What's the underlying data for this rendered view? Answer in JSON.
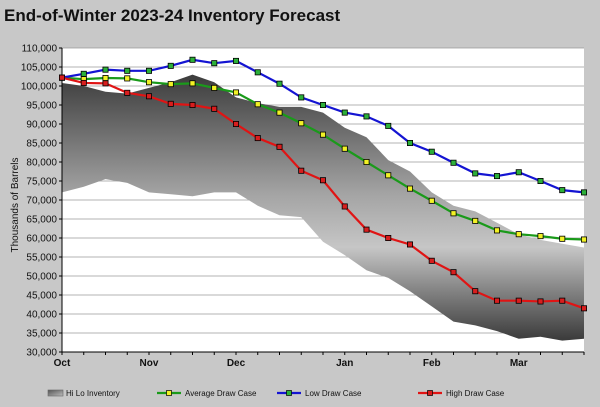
{
  "title": "End-of-Winter 2023-24 Inventory Forecast",
  "chart_data": {
    "type": "line",
    "title": "End-of-Winter 2023-24 Inventory Forecast",
    "xlabel": "",
    "ylabel": "Thousands of Barrels",
    "ylim": [
      30000,
      110000
    ],
    "ytick_step": 5000,
    "ytick_labels": [
      "30,000",
      "35,000",
      "40,000",
      "45,000",
      "50,000",
      "55,000",
      "60,000",
      "65,000",
      "70,000",
      "75,000",
      "80,000",
      "85,000",
      "90,000",
      "95,000",
      "100,000",
      "105,000",
      "110,000"
    ],
    "x_tick_labels": [
      "Oct",
      "Nov",
      "Dec",
      "Jan",
      "Feb",
      "Mar"
    ],
    "x_tick_index": [
      0,
      4,
      8,
      13,
      17,
      21
    ],
    "x_count": 25,
    "hi_lo": {
      "name": "Hi Lo Inventory",
      "high": [
        100800,
        100000,
        98500,
        98000,
        99500,
        101000,
        103000,
        101000,
        97000,
        95500,
        94500,
        94500,
        93000,
        89000,
        86500,
        80500,
        77500,
        72000,
        68500,
        67000,
        64000,
        61000,
        59500,
        58500,
        57500
      ],
      "low": [
        72000,
        73500,
        75500,
        74500,
        72000,
        71500,
        71000,
        72000,
        72000,
        68500,
        66000,
        65500,
        59000,
        55500,
        51500,
        49500,
        46000,
        42000,
        38000,
        37000,
        35500,
        33500,
        34000,
        33000,
        33500
      ]
    },
    "series": [
      {
        "name": "Average Draw Case",
        "color": "#1a9a1a",
        "marker": "#f2f226",
        "values": [
          102200,
          101800,
          102100,
          102000,
          101000,
          100500,
          100700,
          99500,
          98300,
          95200,
          93000,
          90200,
          87200,
          83500,
          80000,
          76500,
          73000,
          69800,
          66500,
          64500,
          62000,
          61000,
          60500,
          59800,
          59600
        ]
      },
      {
        "name": "Low Draw Case",
        "color": "#1414d2",
        "marker": "#2cb03a",
        "values": [
          102200,
          103200,
          104300,
          104000,
          104000,
          105300,
          106900,
          106000,
          106600,
          103600,
          100600,
          97000,
          95000,
          93000,
          92000,
          89500,
          85000,
          82700,
          79800,
          77000,
          76300,
          77300,
          75000,
          72600,
          72000
        ]
      },
      {
        "name": "High Draw Case",
        "color": "#e01414",
        "marker": "#d81e1e",
        "values": [
          102200,
          100800,
          100700,
          98200,
          97300,
          95300,
          95000,
          94000,
          90000,
          86300,
          84000,
          77700,
          75200,
          68300,
          62200,
          60000,
          58300,
          54000,
          51000,
          46000,
          43500,
          43500,
          43300,
          43500,
          41500
        ]
      }
    ],
    "legend_position": "bottom",
    "grid": true
  }
}
